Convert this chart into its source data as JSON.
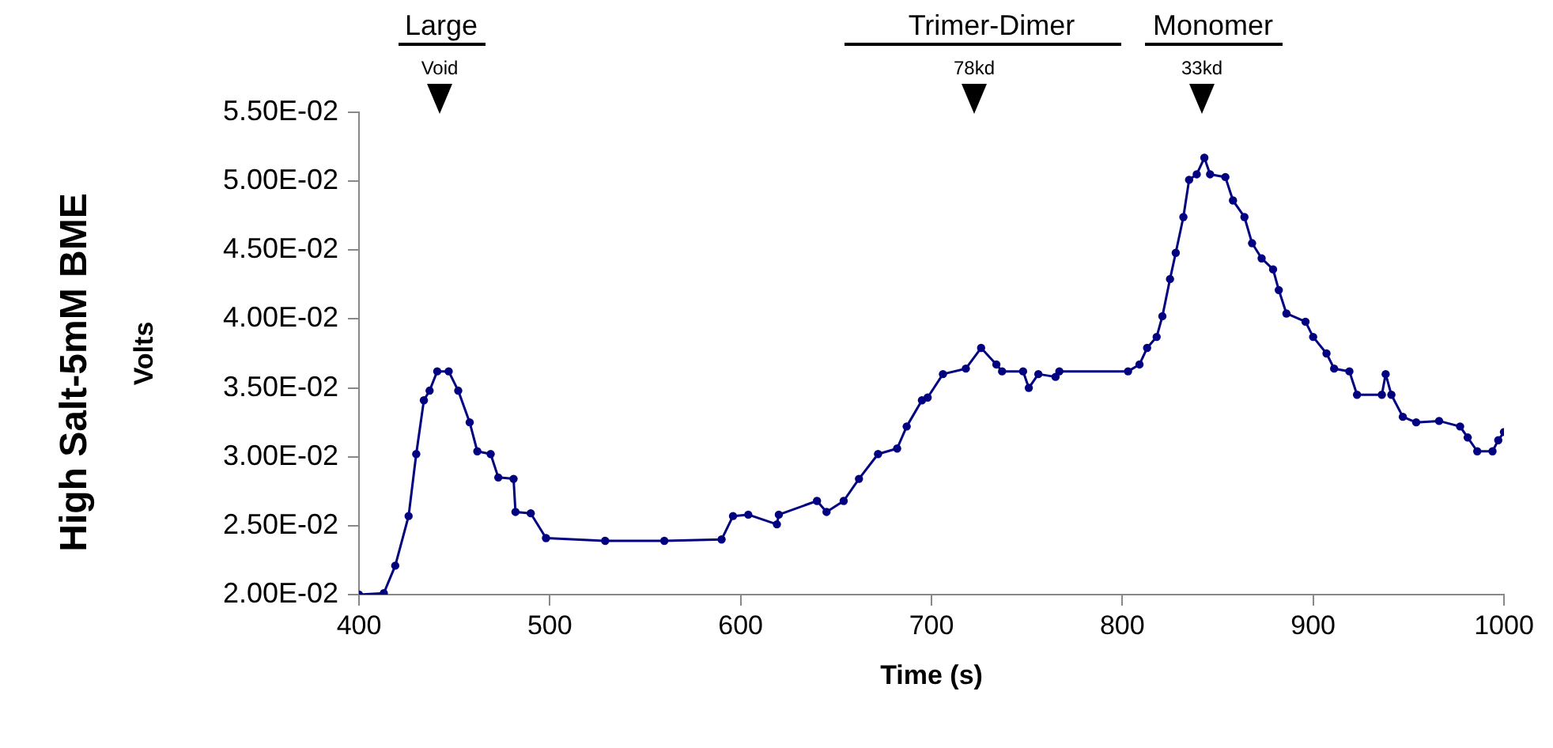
{
  "chart_data": {
    "type": "line",
    "title": "High Salt-5mM BME",
    "xlabel": "Time (s)",
    "ylabel": "Volts",
    "annotations": [
      "Large",
      "Void",
      "Trimer-Dimer",
      "78kd",
      "Monomer",
      "33kd"
    ],
    "x": [
      400,
      413,
      419,
      426,
      430,
      434,
      437,
      441,
      447,
      452,
      458,
      462,
      469,
      473,
      481,
      482,
      490,
      498,
      529,
      560,
      590,
      596,
      604,
      619,
      620,
      640,
      645,
      654,
      662,
      672,
      682,
      687,
      695,
      698,
      706,
      718,
      726,
      734,
      737,
      748,
      751,
      756,
      765,
      767,
      803,
      809,
      813,
      818,
      821,
      825,
      828,
      832,
      835,
      839,
      843,
      846,
      854,
      858,
      864,
      868,
      873,
      879,
      882,
      886,
      896,
      900,
      907,
      911,
      919,
      923,
      936,
      938,
      941,
      947,
      954,
      966,
      977,
      981,
      986,
      994,
      997,
      1000
    ],
    "series": [
      {
        "color": "#000080",
        "values": [
          0.02,
          0.0201,
          0.0221,
          0.0257,
          0.0302,
          0.0341,
          0.0348,
          0.0362,
          0.0362,
          0.0348,
          0.0325,
          0.0304,
          0.0302,
          0.0285,
          0.0284,
          0.026,
          0.0259,
          0.0241,
          0.0239,
          0.0239,
          0.024,
          0.0257,
          0.0258,
          0.0251,
          0.0258,
          0.0268,
          0.026,
          0.0268,
          0.0284,
          0.0302,
          0.0306,
          0.0322,
          0.0341,
          0.0343,
          0.036,
          0.0364,
          0.0379,
          0.0367,
          0.0362,
          0.0362,
          0.035,
          0.036,
          0.0358,
          0.0362,
          0.0362,
          0.0367,
          0.0379,
          0.0387,
          0.0402,
          0.0429,
          0.0448,
          0.0474,
          0.0501,
          0.0505,
          0.0517,
          0.0505,
          0.0503,
          0.0486,
          0.0474,
          0.0455,
          0.0444,
          0.0436,
          0.0421,
          0.0404,
          0.0398,
          0.0387,
          0.0375,
          0.0364,
          0.0362,
          0.0345,
          0.0345,
          0.036,
          0.0345,
          0.0329,
          0.0325,
          0.0326,
          0.0322,
          0.0314,
          0.0304,
          0.0304,
          0.0312,
          0.0318
        ]
      }
    ],
    "xlim": [
      400,
      1000
    ],
    "xticks": [
      400,
      500,
      600,
      700,
      800,
      900,
      1000
    ],
    "ylim": [
      0.02,
      0.055
    ],
    "yticks": [
      {
        "value": 0.02,
        "label": "2.00E-02"
      },
      {
        "value": 0.025,
        "label": "2.50E-02"
      },
      {
        "value": 0.03,
        "label": "3.00E-02"
      },
      {
        "value": 0.035,
        "label": "3.50E-02"
      },
      {
        "value": 0.04,
        "label": "4.00E-02"
      },
      {
        "value": 0.045,
        "label": "4.50E-02"
      },
      {
        "value": 0.05,
        "label": "5.00E-02"
      },
      {
        "value": 0.055,
        "label": "5.50E-02"
      }
    ],
    "grid": false,
    "legend": false,
    "marker": "circle",
    "line_style": "solid"
  }
}
